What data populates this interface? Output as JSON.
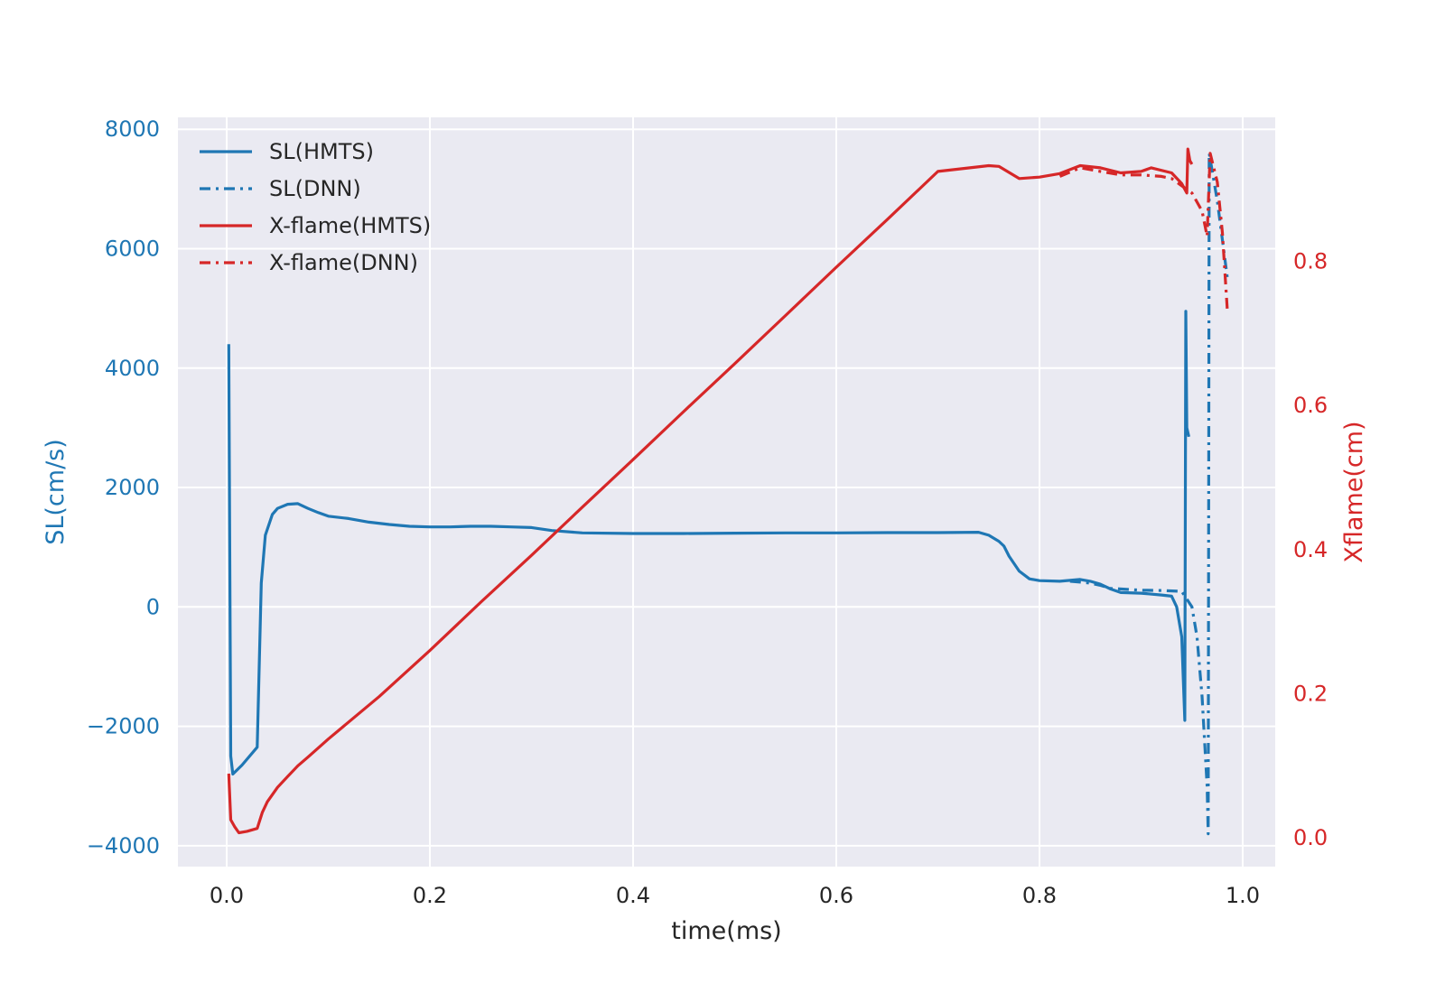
{
  "chart_data": {
    "type": "line",
    "title": "",
    "xlabel": "time(ms)",
    "ylabel_left": "SL(cm/s)",
    "ylabel_right": "Xflame(cm)",
    "xlim": [
      -0.048,
      1.032
    ],
    "ylim_left": [
      -4350,
      8200
    ],
    "ylim_right": [
      -0.04,
      1.0
    ],
    "x_ticks": [
      0.0,
      0.2,
      0.4,
      0.6,
      0.8,
      1.0
    ],
    "x_tick_labels": [
      "0.0",
      "0.2",
      "0.4",
      "0.6",
      "0.8",
      "1.0"
    ],
    "y_left_ticks": [
      -4000,
      -2000,
      0,
      2000,
      4000,
      6000,
      8000
    ],
    "y_left_tick_labels": [
      "−4000",
      "−2000",
      "0",
      "2000",
      "4000",
      "6000",
      "8000"
    ],
    "y_right_ticks": [
      0.0,
      0.2,
      0.4,
      0.6,
      0.8
    ],
    "y_right_tick_labels": [
      "0.0",
      "0.2",
      "0.4",
      "0.6",
      "0.8"
    ],
    "grid": true,
    "legend_position": "top-left",
    "colors": {
      "sl": "#1f77b4",
      "xflame": "#d62728",
      "background": "#eaeaf2",
      "grid": "#ffffff",
      "text": "#262626"
    },
    "series": [
      {
        "name": "SL(HMTS)",
        "axis": "left",
        "style": "solid",
        "color": "#1f77b4",
        "points": [
          [
            0.002,
            4400
          ],
          [
            0.004,
            -2500
          ],
          [
            0.006,
            -2800
          ],
          [
            0.015,
            -2650
          ],
          [
            0.03,
            -2350
          ],
          [
            0.034,
            400
          ],
          [
            0.038,
            1200
          ],
          [
            0.045,
            1550
          ],
          [
            0.05,
            1650
          ],
          [
            0.06,
            1720
          ],
          [
            0.07,
            1730
          ],
          [
            0.08,
            1650
          ],
          [
            0.09,
            1580
          ],
          [
            0.1,
            1520
          ],
          [
            0.12,
            1480
          ],
          [
            0.14,
            1420
          ],
          [
            0.16,
            1380
          ],
          [
            0.18,
            1350
          ],
          [
            0.2,
            1340
          ],
          [
            0.22,
            1340
          ],
          [
            0.24,
            1350
          ],
          [
            0.26,
            1350
          ],
          [
            0.28,
            1340
          ],
          [
            0.3,
            1330
          ],
          [
            0.32,
            1280
          ],
          [
            0.35,
            1240
          ],
          [
            0.4,
            1230
          ],
          [
            0.45,
            1230
          ],
          [
            0.5,
            1235
          ],
          [
            0.55,
            1240
          ],
          [
            0.6,
            1240
          ],
          [
            0.65,
            1245
          ],
          [
            0.7,
            1245
          ],
          [
            0.74,
            1250
          ],
          [
            0.75,
            1200
          ],
          [
            0.76,
            1100
          ],
          [
            0.765,
            1020
          ],
          [
            0.77,
            850
          ],
          [
            0.78,
            600
          ],
          [
            0.79,
            470
          ],
          [
            0.8,
            440
          ],
          [
            0.82,
            430
          ],
          [
            0.84,
            460
          ],
          [
            0.85,
            430
          ],
          [
            0.86,
            380
          ],
          [
            0.87,
            300
          ],
          [
            0.88,
            240
          ],
          [
            0.9,
            230
          ],
          [
            0.92,
            200
          ],
          [
            0.93,
            180
          ],
          [
            0.935,
            0
          ],
          [
            0.94,
            -500
          ],
          [
            0.943,
            -1900
          ],
          [
            0.944,
            4950
          ],
          [
            0.945,
            3000
          ],
          [
            0.947,
            2850
          ]
        ]
      },
      {
        "name": "SL(DNN)",
        "axis": "left",
        "style": "dashdot",
        "color": "#1f77b4",
        "points": [
          [
            0.83,
            430
          ],
          [
            0.85,
            400
          ],
          [
            0.86,
            360
          ],
          [
            0.87,
            310
          ],
          [
            0.9,
            280
          ],
          [
            0.92,
            275
          ],
          [
            0.94,
            260
          ],
          [
            0.95,
            0
          ],
          [
            0.955,
            -500
          ],
          [
            0.96,
            -1500
          ],
          [
            0.965,
            -3000
          ],
          [
            0.966,
            -3800
          ],
          [
            0.967,
            7600
          ],
          [
            0.975,
            6800
          ],
          [
            0.985,
            5500
          ]
        ]
      },
      {
        "name": "X-flame(HMTS)",
        "axis": "right",
        "style": "solid",
        "color": "#d62728",
        "points": [
          [
            0.002,
            0.089
          ],
          [
            0.004,
            0.025
          ],
          [
            0.008,
            0.015
          ],
          [
            0.012,
            0.007
          ],
          [
            0.02,
            0.009
          ],
          [
            0.03,
            0.013
          ],
          [
            0.035,
            0.035
          ],
          [
            0.04,
            0.05
          ],
          [
            0.05,
            0.07
          ],
          [
            0.06,
            0.085
          ],
          [
            0.07,
            0.1
          ],
          [
            0.08,
            0.112
          ],
          [
            0.1,
            0.137
          ],
          [
            0.15,
            0.196
          ],
          [
            0.2,
            0.26
          ],
          [
            0.25,
            0.327
          ],
          [
            0.3,
            0.392
          ],
          [
            0.35,
            0.459
          ],
          [
            0.4,
            0.525
          ],
          [
            0.45,
            0.592
          ],
          [
            0.5,
            0.658
          ],
          [
            0.55,
            0.725
          ],
          [
            0.6,
            0.792
          ],
          [
            0.65,
            0.858
          ],
          [
            0.7,
            0.925
          ],
          [
            0.75,
            0.933
          ],
          [
            0.76,
            0.932
          ],
          [
            0.78,
            0.915
          ],
          [
            0.8,
            0.917
          ],
          [
            0.82,
            0.922
          ],
          [
            0.84,
            0.933
          ],
          [
            0.86,
            0.93
          ],
          [
            0.88,
            0.923
          ],
          [
            0.9,
            0.925
          ],
          [
            0.91,
            0.93
          ],
          [
            0.93,
            0.923
          ],
          [
            0.94,
            0.908
          ],
          [
            0.945,
            0.895
          ],
          [
            0.946,
            0.956
          ],
          [
            0.948,
            0.94
          ],
          [
            0.95,
            0.935
          ]
        ]
      },
      {
        "name": "X-flame(DNN)",
        "axis": "right",
        "style": "dashdot",
        "color": "#d62728",
        "points": [
          [
            0.82,
            0.918
          ],
          [
            0.84,
            0.93
          ],
          [
            0.86,
            0.925
          ],
          [
            0.88,
            0.92
          ],
          [
            0.9,
            0.92
          ],
          [
            0.92,
            0.918
          ],
          [
            0.93,
            0.915
          ],
          [
            0.94,
            0.905
          ],
          [
            0.95,
            0.895
          ],
          [
            0.96,
            0.87
          ],
          [
            0.965,
            0.835
          ],
          [
            0.968,
            0.95
          ],
          [
            0.975,
            0.91
          ],
          [
            0.98,
            0.84
          ],
          [
            0.985,
            0.73
          ]
        ]
      }
    ]
  }
}
